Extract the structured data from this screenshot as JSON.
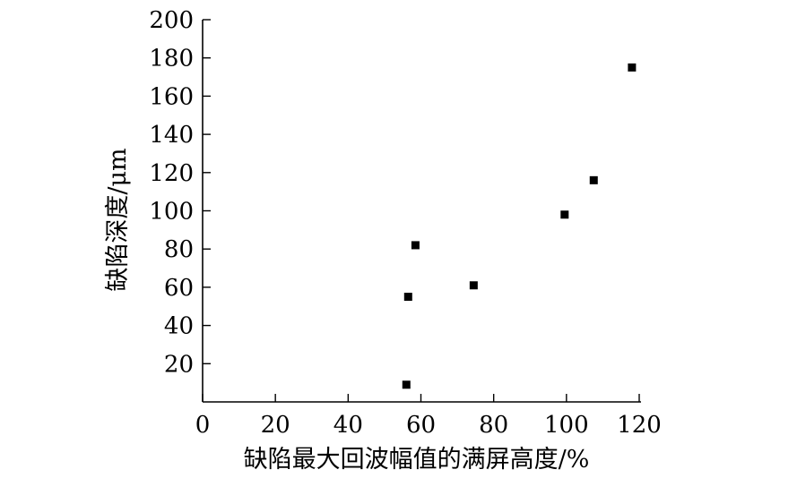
{
  "chart_data": {
    "type": "scatter",
    "xlabel": "缺陷最大回波幅值的满屏高度/%",
    "ylabel": "缺陷深度/μm",
    "xlim": [
      0,
      120
    ],
    "ylim": [
      0,
      200
    ],
    "xticks": [
      0,
      20,
      40,
      60,
      80,
      100,
      120
    ],
    "yticks": [
      20,
      40,
      60,
      80,
      100,
      120,
      140,
      160,
      180,
      200
    ],
    "grid": false,
    "legend": "none",
    "marker": "square",
    "marker_color": "#000000",
    "series": [
      {
        "x": [
          56,
          56.5,
          58.5,
          74.5,
          99.5,
          107.5,
          118
        ],
        "y": [
          9,
          55,
          82,
          61,
          98,
          116,
          175
        ]
      }
    ]
  }
}
